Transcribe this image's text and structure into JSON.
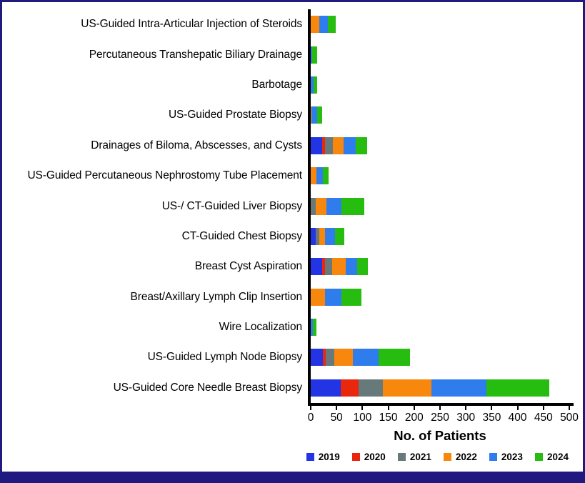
{
  "frame": {
    "border_color": "#201a80",
    "bottom_band_color": "#201a80",
    "background": "#ffffff"
  },
  "chart_data": {
    "type": "bar",
    "orientation": "horizontal",
    "stacked": true,
    "title": "",
    "xlabel": "No. of Patients",
    "ylabel": "",
    "xlim": [
      0,
      500
    ],
    "xticks": [
      0,
      50,
      100,
      150,
      200,
      250,
      300,
      350,
      400,
      450,
      500
    ],
    "grid": false,
    "legend_position": "bottom-right",
    "categories": [
      "US-Guided Intra-Articular Injection of Steroids",
      "Percutaneous Transhepatic Biliary Drainage",
      "Barbotage",
      "US-Guided Prostate Biopsy",
      "Drainages of Biloma, Abscesses, and Cysts",
      "US-Guided Percutaneous Nephrostomy Tube Placement",
      "US-/ CT-Guided Liver Biopsy",
      "CT-Guided Chest Biopsy",
      "Breast Cyst Aspiration",
      "Breast/Axillary Lymph Clip Insertion",
      "Wire Localization",
      "US-Guided Lymph Node Biopsy",
      "US-Guided Core Needle Breast Biopsy"
    ],
    "series": [
      {
        "name": "2019",
        "color": "#2334e4",
        "values": [
          0,
          0,
          0,
          0,
          22,
          0,
          0,
          9,
          22,
          0,
          0,
          23,
          58
        ]
      },
      {
        "name": "2020",
        "color": "#e8270c",
        "values": [
          0,
          0,
          0,
          0,
          6,
          0,
          0,
          0,
          6,
          0,
          0,
          6,
          34
        ]
      },
      {
        "name": "2021",
        "color": "#68797c",
        "values": [
          0,
          0,
          0,
          0,
          15,
          0,
          10,
          7,
          13,
          0,
          0,
          16,
          47
        ]
      },
      {
        "name": "2022",
        "color": "#f8870e",
        "values": [
          16,
          0,
          0,
          2,
          21,
          11,
          21,
          11,
          27,
          28,
          0,
          37,
          94
        ]
      },
      {
        "name": "2023",
        "color": "#2f7ded",
        "values": [
          17,
          3,
          6,
          10,
          23,
          12,
          28,
          20,
          22,
          31,
          4,
          49,
          107
        ]
      },
      {
        "name": "2024",
        "color": "#26bd10",
        "values": [
          15,
          9,
          6,
          10,
          22,
          11,
          44,
          18,
          21,
          39,
          7,
          61,
          121
        ]
      }
    ]
  }
}
